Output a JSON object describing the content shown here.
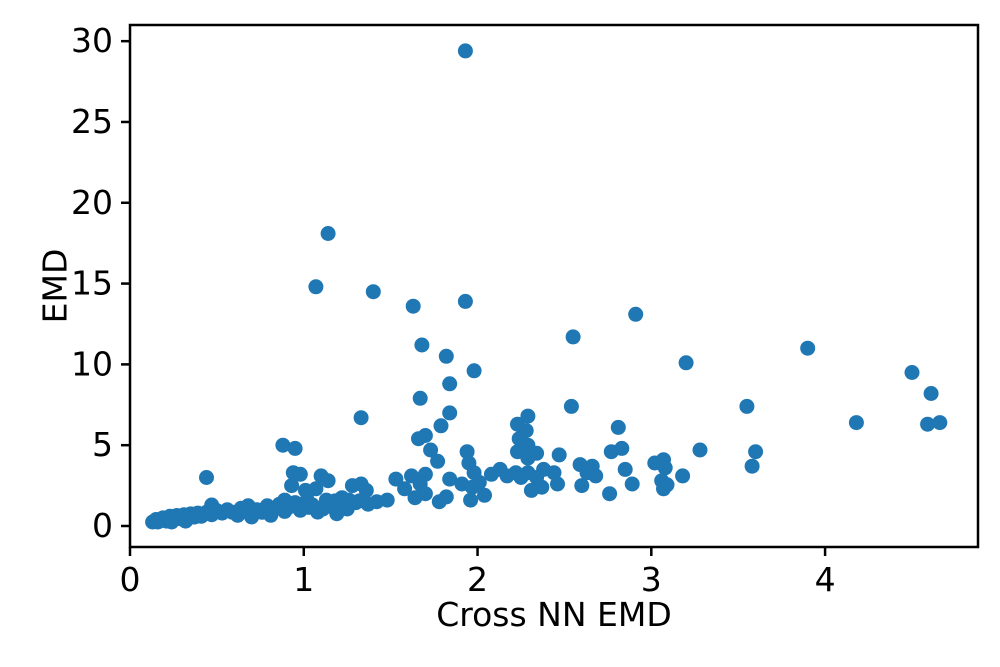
{
  "figure": {
    "background": "#ffffff",
    "axis_color": "#000000"
  },
  "chart_data": {
    "type": "scatter",
    "title": "",
    "xlabel": "Cross NN EMD",
    "ylabel": "EMD",
    "xlim": [
      0,
      4.88
    ],
    "ylim": [
      -1.3,
      31.0
    ],
    "x_ticks": [
      0,
      1,
      2,
      3,
      4
    ],
    "y_ticks": [
      0,
      5,
      10,
      15,
      20,
      25,
      30
    ],
    "grid": false,
    "legend": null,
    "marker_color": "#1f77b4",
    "marker_radius": 7.5,
    "points": [
      [
        1.93,
        29.4
      ],
      [
        1.14,
        18.1
      ],
      [
        1.07,
        14.8
      ],
      [
        1.4,
        14.5
      ],
      [
        1.93,
        13.9
      ],
      [
        1.63,
        13.6
      ],
      [
        2.91,
        13.1
      ],
      [
        2.55,
        11.7
      ],
      [
        1.68,
        11.2
      ],
      [
        1.82,
        10.5
      ],
      [
        3.2,
        10.1
      ],
      [
        1.98,
        9.6
      ],
      [
        3.9,
        11.0
      ],
      [
        4.5,
        9.5
      ],
      [
        4.61,
        8.2
      ],
      [
        1.84,
        8.8
      ],
      [
        1.67,
        7.9
      ],
      [
        2.54,
        7.4
      ],
      [
        3.55,
        7.4
      ],
      [
        4.18,
        6.4
      ],
      [
        4.59,
        6.3
      ],
      [
        4.66,
        6.4
      ],
      [
        1.33,
        6.7
      ],
      [
        1.84,
        7.0
      ],
      [
        1.79,
        6.2
      ],
      [
        1.7,
        5.6
      ],
      [
        1.66,
        5.4
      ],
      [
        2.29,
        6.8
      ],
      [
        2.23,
        6.3
      ],
      [
        2.28,
        5.9
      ],
      [
        2.24,
        5.4
      ],
      [
        2.29,
        5.0
      ],
      [
        2.81,
        6.1
      ],
      [
        0.88,
        5.0
      ],
      [
        0.95,
        4.8
      ],
      [
        1.73,
        4.7
      ],
      [
        1.77,
        4.0
      ],
      [
        1.94,
        4.6
      ],
      [
        1.95,
        3.9
      ],
      [
        2.23,
        4.6
      ],
      [
        2.29,
        4.2
      ],
      [
        2.34,
        4.5
      ],
      [
        2.47,
        4.4
      ],
      [
        2.77,
        4.6
      ],
      [
        2.83,
        4.8
      ],
      [
        3.07,
        4.1
      ],
      [
        3.28,
        4.7
      ],
      [
        3.6,
        4.6
      ],
      [
        3.58,
        3.7
      ],
      [
        2.59,
        3.8
      ],
      [
        2.66,
        3.7
      ],
      [
        2.63,
        3.3
      ],
      [
        2.68,
        3.1
      ],
      [
        2.85,
        3.5
      ],
      [
        3.08,
        3.6
      ],
      [
        3.18,
        3.1
      ],
      [
        2.38,
        3.5
      ],
      [
        2.44,
        3.3
      ],
      [
        2.13,
        3.5
      ],
      [
        2.17,
        3.1
      ],
      [
        2.22,
        3.3
      ],
      [
        2.25,
        3.0
      ],
      [
        2.29,
        3.3
      ],
      [
        2.34,
        3.0
      ],
      [
        1.98,
        3.3
      ],
      [
        2.08,
        3.2
      ],
      [
        3.02,
        3.9
      ],
      [
        1.7,
        3.2
      ],
      [
        1.84,
        2.9
      ],
      [
        1.91,
        2.6
      ],
      [
        2.01,
        2.7
      ],
      [
        1.97,
        2.4
      ],
      [
        2.6,
        2.5
      ],
      [
        2.76,
        2.0
      ],
      [
        2.89,
        2.6
      ],
      [
        3.06,
        2.8
      ],
      [
        3.09,
        2.55
      ],
      [
        3.07,
        2.3
      ],
      [
        2.46,
        2.6
      ],
      [
        2.37,
        2.4
      ],
      [
        2.31,
        2.2
      ],
      [
        2.04,
        1.9
      ],
      [
        1.96,
        1.6
      ],
      [
        1.82,
        1.8
      ],
      [
        0.44,
        3.0
      ],
      [
        0.94,
        3.3
      ],
      [
        0.98,
        3.2
      ],
      [
        0.93,
        2.5
      ],
      [
        1.1,
        3.1
      ],
      [
        1.14,
        2.8
      ],
      [
        1.01,
        2.2
      ],
      [
        1.07,
        2.3
      ],
      [
        1.28,
        2.5
      ],
      [
        1.33,
        2.6
      ],
      [
        1.36,
        2.2
      ],
      [
        1.53,
        2.9
      ],
      [
        1.62,
        3.1
      ],
      [
        1.67,
        2.6
      ],
      [
        1.58,
        2.3
      ],
      [
        1.64,
        1.75
      ],
      [
        1.7,
        2.0
      ],
      [
        1.78,
        1.5
      ],
      [
        0.89,
        1.6
      ],
      [
        0.95,
        1.25
      ],
      [
        1.03,
        1.15
      ],
      [
        1.11,
        1.05
      ],
      [
        1.18,
        1.55
      ],
      [
        1.22,
        1.75
      ],
      [
        1.32,
        1.55
      ],
      [
        1.25,
        1.05
      ],
      [
        1.37,
        1.35
      ],
      [
        1.42,
        1.5
      ],
      [
        1.48,
        1.6
      ],
      [
        0.13,
        0.25
      ],
      [
        0.15,
        0.4
      ],
      [
        0.17,
        0.3
      ],
      [
        0.19,
        0.5
      ],
      [
        0.21,
        0.3
      ],
      [
        0.23,
        0.6
      ],
      [
        0.25,
        0.4
      ],
      [
        0.27,
        0.65
      ],
      [
        0.29,
        0.45
      ],
      [
        0.31,
        0.7
      ],
      [
        0.33,
        0.5
      ],
      [
        0.35,
        0.75
      ],
      [
        0.37,
        0.55
      ],
      [
        0.39,
        0.8
      ],
      [
        0.41,
        0.6
      ],
      [
        0.16,
        0.25
      ],
      [
        0.24,
        0.25
      ],
      [
        0.32,
        0.3
      ],
      [
        0.44,
        0.85
      ],
      [
        0.47,
        1.3
      ],
      [
        0.47,
        0.7
      ],
      [
        0.5,
        0.95
      ],
      [
        0.53,
        0.8
      ],
      [
        0.56,
        1.0
      ],
      [
        0.59,
        0.85
      ],
      [
        0.62,
        0.66
      ],
      [
        0.64,
        1.1
      ],
      [
        0.68,
        1.25
      ],
      [
        0.7,
        0.56
      ],
      [
        0.73,
        1.0
      ],
      [
        0.76,
        0.85
      ],
      [
        0.79,
        1.25
      ],
      [
        0.81,
        0.66
      ],
      [
        0.84,
        1.1
      ],
      [
        0.86,
        1.35
      ],
      [
        0.89,
        0.9
      ],
      [
        0.92,
        1.2
      ],
      [
        0.95,
        1.45
      ],
      [
        0.98,
        0.97
      ],
      [
        1.02,
        1.6
      ],
      [
        1.05,
        1.3
      ],
      [
        1.08,
        0.86
      ],
      [
        1.13,
        1.6
      ],
      [
        1.16,
        1.2
      ],
      [
        1.19,
        0.76
      ],
      [
        1.22,
        1.4
      ],
      [
        1.26,
        1.6
      ],
      [
        1.3,
        1.45
      ]
    ]
  }
}
